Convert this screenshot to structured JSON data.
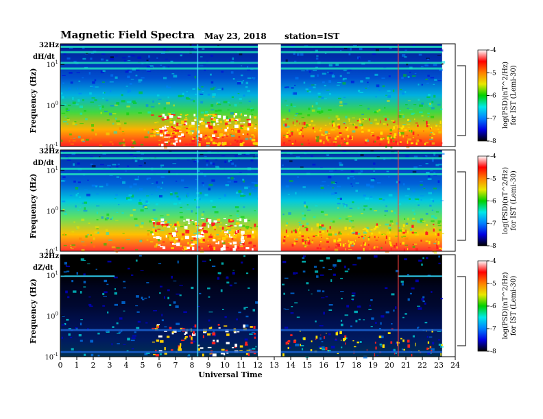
{
  "header": {
    "title": "Magnetic  Field  Spectra",
    "date": "May 23, 2018",
    "station": "station=IST"
  },
  "chart_data": {
    "type": "heatmap",
    "xlabel": "Universal Time",
    "xlim": [
      0,
      24
    ],
    "x_ticks": [
      "0",
      "1",
      "2",
      "3",
      "4",
      "5",
      "6",
      "7",
      "8",
      "9",
      "10",
      "11",
      "12",
      "13",
      "14",
      "15",
      "16",
      "17",
      "18",
      "19",
      "20",
      "21",
      "22",
      "23",
      "24"
    ],
    "data_gap": [
      12.0,
      13.4
    ],
    "data_end": 23.2,
    "ylabel": "Frequency  (Hz)",
    "y_log": true,
    "ylim": [
      0.1,
      32
    ],
    "y_top_label": "32Hz",
    "y_tick_bases": [
      "10",
      "10",
      "10"
    ],
    "y_tick_exps": [
      "-1",
      "0",
      "1"
    ],
    "panels": [
      {
        "component": "dH/dt"
      },
      {
        "component": "dD/dt"
      },
      {
        "component": "dZ/dt"
      }
    ],
    "colorbar": {
      "label": "log(PSD)(nT^2/Hz)",
      "sublabel": "for IST (Lemi-30)",
      "range": [
        -8,
        -4
      ],
      "ticks": [
        "-8",
        "-7",
        "-6",
        "-5",
        "-4"
      ],
      "colors": [
        "#000000",
        "#0000e0",
        "#0080ff",
        "#00e8e8",
        "#00d000",
        "#e8e800",
        "#ff8000",
        "#ff0000",
        "#ffffff"
      ]
    }
  }
}
